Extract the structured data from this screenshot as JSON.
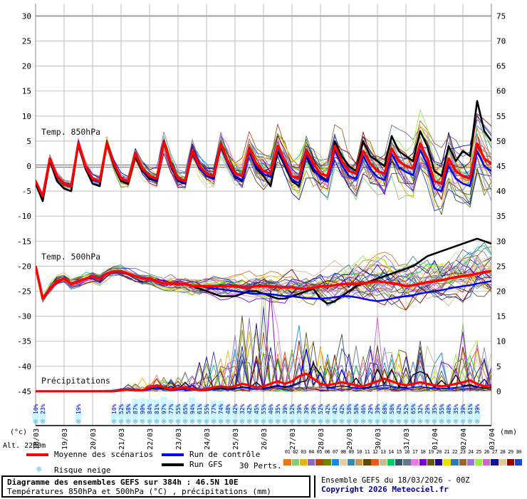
{
  "chart_data": {
    "type": "line",
    "title": "Diagramme des ensembles GEFS sur 384h : 46.5N 10E",
    "subtitle": "Températures 850hPa et 500hPa (°C) , précipitations (mm)",
    "x_dates": [
      "18/03",
      "19/03",
      "20/03",
      "21/03",
      "22/03",
      "23/03",
      "24/03",
      "25/03",
      "26/03",
      "27/03",
      "28/03",
      "29/03",
      "30/03",
      "31/03",
      "01/04",
      "02/04",
      "03/04"
    ],
    "steps_per_day": 4,
    "left_axis_unit": "(°c)",
    "right_axis_unit": "(mm)",
    "left_ticks": [
      30,
      25,
      20,
      15,
      10,
      5,
      0,
      -5,
      -10,
      -15,
      -20,
      -25,
      -30,
      -35,
      -40,
      -45
    ],
    "right_ticks": [
      75,
      70,
      65,
      60,
      55,
      50,
      45,
      40,
      35,
      30,
      25,
      20,
      15,
      10,
      5,
      0
    ],
    "sections": [
      {
        "label": "Temp. 850hPa",
        "mean": [
          -3,
          -6,
          1.5,
          -2,
          -3.5,
          -4,
          4.5,
          0,
          -2.5,
          -3,
          4.5,
          0.5,
          -2.5,
          -3,
          2.5,
          -0.5,
          -2,
          -2.5,
          4.8,
          0.5,
          -2.5,
          -3,
          3,
          0,
          -1.5,
          -2,
          4.5,
          1,
          -1.5,
          -2,
          3.5,
          0.5,
          -1,
          -1.5,
          4,
          1,
          -2,
          -2.5,
          3,
          0.5,
          -1.5,
          -2,
          4,
          1,
          -1,
          -1.5,
          3,
          0.5,
          -1,
          -1.5,
          3.5,
          1,
          0,
          -0.5,
          4.5,
          1.5,
          -3,
          -3.5,
          1.5,
          -1,
          -2,
          -2.5,
          4.5,
          1.5,
          0.5
        ],
        "control": [
          -3,
          -6,
          1.5,
          -2.2,
          -3.6,
          -4.2,
          4.3,
          -0.2,
          -2.8,
          -3.2,
          4.4,
          0.3,
          -2.6,
          -3.1,
          2.3,
          -0.8,
          -2.2,
          -2.8,
          4.6,
          0.2,
          -2.8,
          -3.4,
          2.6,
          -0.5,
          -2,
          -2.6,
          4.2,
          0.6,
          -2,
          -2.8,
          3,
          0,
          -1.6,
          -2.2,
          3.4,
          0.4,
          -2.8,
          -3.4,
          2.2,
          -0.4,
          -2.4,
          -3,
          3.2,
          0.2,
          -2,
          -2.6,
          2,
          -0.6,
          -2.2,
          -2.8,
          2.4,
          -0.2,
          -1.2,
          -1.8,
          3.2,
          0.2,
          -4.5,
          -5,
          0,
          -2.5,
          -3.5,
          -4,
          3,
          0,
          -1
        ],
        "gfs": [
          -3.5,
          -7,
          1,
          -3,
          -4.5,
          -5,
          4.3,
          -0.5,
          -3.5,
          -4,
          4.4,
          0,
          -3,
          -3.5,
          2,
          -1,
          -2.5,
          -3,
          5,
          0,
          -3,
          -3.5,
          2.5,
          -0.5,
          -2,
          -2.5,
          4,
          0.5,
          -2.2,
          -3,
          3,
          -0.5,
          -2,
          -4,
          3,
          0,
          -3,
          -4,
          2,
          -1,
          -2,
          -3,
          5,
          2,
          0,
          -1,
          5,
          2,
          1,
          0,
          6,
          3,
          2,
          1,
          7,
          4,
          -1,
          -2,
          4,
          1,
          3,
          2,
          13,
          7,
          5
        ],
        "spread_bp": [
          [
            0,
            0.5
          ],
          [
            1,
            1.2
          ],
          [
            8,
            1.3
          ],
          [
            16,
            2.5
          ],
          [
            24,
            4
          ],
          [
            32,
            5.5
          ],
          [
            40,
            7
          ],
          [
            48,
            8
          ],
          [
            56,
            9
          ],
          [
            64,
            9.5
          ]
        ]
      },
      {
        "label": "Temp. 500hPa",
        "mean": [
          -20,
          -26.5,
          -24.5,
          -23,
          -22.5,
          -23.5,
          -23,
          -22.5,
          -22,
          -22.5,
          -21.5,
          -21,
          -21,
          -21.5,
          -22,
          -22.5,
          -22.5,
          -23,
          -23.5,
          -23.5,
          -23.5,
          -23.5,
          -24,
          -24,
          -24,
          -24,
          -24,
          -24,
          -24,
          -24.2,
          -24.2,
          -24,
          -24,
          -24,
          -24.2,
          -24.2,
          -24.2,
          -24.5,
          -24.5,
          -24.3,
          -24,
          -24,
          -23.8,
          -23.6,
          -23.5,
          -23.5,
          -23.4,
          -23.2,
          -23,
          -23.2,
          -23.4,
          -23.6,
          -24,
          -23.8,
          -23.5,
          -23.2,
          -23,
          -22.8,
          -22.5,
          -22.2,
          -22,
          -21.8,
          -21.5,
          -21.2,
          -21
        ],
        "control": [
          -20,
          -26.5,
          -24.5,
          -23,
          -22.5,
          -23.5,
          -23,
          -22.5,
          -22,
          -22.5,
          -21.5,
          -21,
          -21,
          -21.5,
          -22,
          -22.5,
          -22.5,
          -23,
          -23.5,
          -23.5,
          -23.5,
          -23.5,
          -24,
          -24,
          -24.2,
          -24.5,
          -24.6,
          -24.8,
          -25,
          -25.2,
          -25.4,
          -25.5,
          -25.5,
          -25.6,
          -25.8,
          -26,
          -26,
          -26.2,
          -26.4,
          -26.5,
          -26.5,
          -26.4,
          -26.2,
          -26,
          -26,
          -26.2,
          -26.5,
          -26.8,
          -27,
          -26.8,
          -26.5,
          -26.2,
          -26,
          -25.8,
          -25.5,
          -25.2,
          -25,
          -24.8,
          -24.5,
          -24.2,
          -24,
          -23.8,
          -23.5,
          -23.2,
          -23
        ],
        "gfs": [
          -20,
          -26.5,
          -24.5,
          -23,
          -22.5,
          -23.5,
          -23,
          -22.5,
          -22,
          -22.5,
          -21.5,
          -21,
          -21,
          -21.5,
          -22,
          -22.5,
          -22.5,
          -23,
          -23.5,
          -23.5,
          -23.5,
          -23.5,
          -24,
          -24.5,
          -25,
          -25.5,
          -26,
          -26,
          -26,
          -25.5,
          -25,
          -25,
          -25.5,
          -26,
          -26.5,
          -26.5,
          -26,
          -25.5,
          -25,
          -24.5,
          -26.5,
          -27.5,
          -27,
          -26,
          -25,
          -24,
          -23.5,
          -23,
          -22.5,
          -22,
          -21.5,
          -21,
          -20.5,
          -20,
          -19,
          -18,
          -17.5,
          -17,
          -16.5,
          -16,
          -15.5,
          -15,
          -14.5,
          -15,
          -15.5
        ],
        "spread_bp": [
          [
            0,
            0.4
          ],
          [
            2,
            2.8
          ],
          [
            4,
            1.4
          ],
          [
            12,
            1.6
          ],
          [
            20,
            2.2
          ],
          [
            28,
            3
          ],
          [
            36,
            4.5
          ],
          [
            44,
            6
          ],
          [
            52,
            7
          ],
          [
            60,
            8
          ],
          [
            64,
            8.5
          ]
        ]
      },
      {
        "label": "Précipitations",
        "mean": [
          0,
          0,
          0,
          0,
          0,
          0,
          0,
          0,
          0,
          0,
          0,
          0,
          0.2,
          0.4,
          0.3,
          0.2,
          0.8,
          1.2,
          0.8,
          0.4,
          0.6,
          0.8,
          0.5,
          0.3,
          0.4,
          0.8,
          1,
          0.8,
          1,
          1.5,
          1.2,
          0.8,
          1,
          1.5,
          2,
          1.5,
          2,
          3,
          3.5,
          2.5,
          1.5,
          1.2,
          1.5,
          1.8,
          1.5,
          1.2,
          1,
          1.5,
          2,
          2.5,
          2,
          1.5,
          1.2,
          1.5,
          1.8,
          1.5,
          1.2,
          1,
          1.2,
          1.5,
          1.8,
          2.2,
          1.5,
          1,
          1.2
        ],
        "env_bp": [
          [
            0,
            0
          ],
          [
            10,
            0.3
          ],
          [
            12,
            1.5
          ],
          [
            16,
            4
          ],
          [
            20,
            3
          ],
          [
            24,
            8
          ],
          [
            28,
            14
          ],
          [
            32,
            25
          ],
          [
            36,
            20
          ],
          [
            40,
            14
          ],
          [
            44,
            12
          ],
          [
            48,
            16
          ],
          [
            52,
            12
          ],
          [
            56,
            12
          ],
          [
            60,
            14
          ],
          [
            64,
            10
          ]
        ]
      }
    ],
    "snow_risk": {
      "early": [
        {
          "i": 0,
          "pct": 10
        },
        {
          "i": 1,
          "pct": 23
        },
        {
          "i": 6,
          "pct": 19
        }
      ],
      "run_start_i": 11,
      "pcts": [
        10,
        52,
        58,
        87,
        90,
        84,
        81,
        97,
        77,
        55,
        65,
        94,
        61,
        55,
        77,
        74,
        48,
        42,
        32,
        42,
        45,
        55,
        46,
        35,
        39,
        52,
        39,
        39,
        39,
        52,
        42,
        42,
        42,
        58,
        58,
        46,
        29,
        39,
        68,
        58,
        42,
        52,
        65,
        32,
        29,
        35,
        55,
        48,
        35,
        39,
        61,
        39
      ]
    }
  },
  "chart_meta": {
    "alt_label": "Alt. 2200m",
    "left_unit": "(°c)",
    "right_unit": "(mm)"
  },
  "colors": {
    "mean": "#ff0000",
    "control": "#0000ee",
    "gfs": "#000000",
    "grid": "#c9c9c9",
    "grid_day": "#bdbdbd",
    "zero_line": "#8a8a8a",
    "snow_text": "#0000cc",
    "snow_bar": "#ccf6ff",
    "snowflake": "#62b8e0",
    "copyright": "#000099"
  },
  "legend": {
    "mean_label": "Moyenne des scénarios",
    "control_label": "Run de contrôle",
    "gfs_label": "Run GFS",
    "perts_label": "30 Perts.",
    "snow_label": "Risque neige",
    "snow_icon": "❄"
  },
  "perturbations": {
    "colors": [
      "#e07820",
      "#88c878",
      "#e0b800",
      "#9068b8",
      "#b04810",
      "#6b8800",
      "#1888e8",
      "#ddd0a8",
      "#3888a8",
      "#cc9955",
      "#664400",
      "#f05818",
      "#ccbb88",
      "#00cc66",
      "#335566",
      "#667788",
      "#ee77ee",
      "#7700cc",
      "#665511",
      "#220088",
      "#eedd00",
      "#3377bb",
      "#996633",
      "#9977cc",
      "#99ee44",
      "#cc66cc",
      "#111199",
      "#ddcc99",
      "#990000",
      "#2244cc"
    ]
  },
  "footer": {
    "left_line1": "Diagramme des ensembles GEFS sur 384h : 46.5N 10E",
    "left_line2": "Températures 850hPa et 500hPa (°C) , précipitations (mm)",
    "right_line1": "Ensemble GEFS du 18/03/2026 - 00Z",
    "right_line2": "Copyright 2026 Meteociel.fr"
  }
}
